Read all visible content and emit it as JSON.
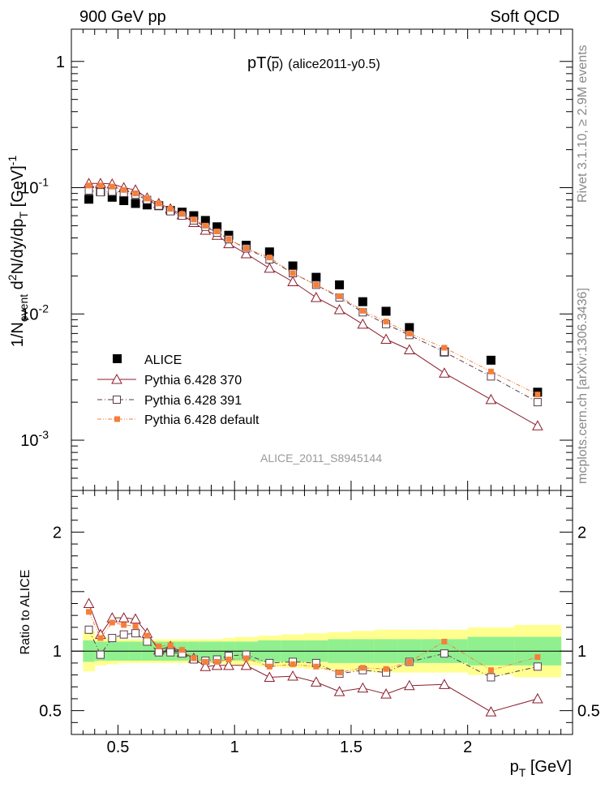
{
  "header": {
    "left_label": "900 GeV pp",
    "right_label": "Soft QCD",
    "side_top": "Rivet 3.1.10, ≥ 2.9M events",
    "side_bottom": "mcplots.cern.ch [arXiv:1306.3436]"
  },
  "colors": {
    "alice": "#000000",
    "py370": "#8a1c2c",
    "py391": "#5a3a4a",
    "pydef": "#f57f3a",
    "band_inner": "#90f090",
    "band_outer": "#ffff90"
  },
  "chart_data": [
    {
      "type": "scatter",
      "panel": "main",
      "title": "pT(p̄) (alice2011-y0.5)",
      "title_main": "pT(",
      "title_pbar": "p",
      "title_close": ")",
      "title_tag": "(alice2011-y0.5)",
      "ylabel": "1/N_event d²N/dy/dp_T [GeV]⁻¹",
      "ylabel_parts": {
        "a": "1/N",
        "b": "event",
        "c": " d",
        "d": "2",
        "e": "N/dy/dp",
        "f": "T",
        "g": " [GeV]",
        "h": "-1"
      },
      "yscale": "log",
      "ylim": [
        0.0004,
        1.8
      ],
      "xlim": [
        0.3,
        2.45
      ],
      "ytick_labels": [
        {
          "value": 1,
          "mant": "1",
          "exp": ""
        },
        {
          "value": 0.1,
          "mant": "10",
          "exp": "-1"
        },
        {
          "value": 0.01,
          "mant": "10",
          "exp": "-2"
        },
        {
          "value": 0.001,
          "mant": "10",
          "exp": "-3"
        }
      ],
      "watermark": "ALICE_2011_S8945144",
      "legend_position": "lower-left",
      "x": [
        0.375,
        0.425,
        0.475,
        0.525,
        0.575,
        0.625,
        0.675,
        0.725,
        0.775,
        0.825,
        0.875,
        0.925,
        0.975,
        1.05,
        1.15,
        1.25,
        1.35,
        1.45,
        1.55,
        1.65,
        1.75,
        1.9,
        2.1,
        2.3
      ],
      "series": [
        {
          "name": "ALICE",
          "key": "alice",
          "marker": "filled-square",
          "line": false,
          "values": [
            0.081,
            0.093,
            0.084,
            0.079,
            0.075,
            0.073,
            0.072,
            0.066,
            0.064,
            0.06,
            0.055,
            0.049,
            0.042,
            0.035,
            0.031,
            0.024,
            0.0195,
            0.017,
            0.0125,
            0.0105,
            0.0078,
            0.005,
            0.0043,
            0.0024
          ]
        },
        {
          "name": "Pythia 6.428 370",
          "key": "py370",
          "marker": "open-triangle",
          "line": "solid",
          "values": [
            0.108,
            0.108,
            0.107,
            0.1,
            0.096,
            0.083,
            0.075,
            0.068,
            0.061,
            0.053,
            0.046,
            0.042,
            0.036,
            0.03,
            0.023,
            0.018,
            0.0135,
            0.0108,
            0.0083,
            0.0063,
            0.0052,
            0.0034,
            0.0021,
            0.0013
          ]
        },
        {
          "name": "Pythia 6.428 391",
          "key": "py391",
          "marker": "open-square",
          "line": "dash-dot",
          "values": [
            0.095,
            0.092,
            0.093,
            0.091,
            0.088,
            0.08,
            0.072,
            0.065,
            0.06,
            0.055,
            0.049,
            0.044,
            0.039,
            0.033,
            0.027,
            0.021,
            0.017,
            0.0135,
            0.0103,
            0.0083,
            0.0068,
            0.005,
            0.0032,
            0.002
          ]
        },
        {
          "name": "Pythia 6.428 default",
          "key": "pydef",
          "marker": "filled-small-square",
          "line": "dash-dot-dot",
          "values": [
            0.104,
            0.104,
            0.102,
            0.096,
            0.09,
            0.082,
            0.075,
            0.068,
            0.062,
            0.056,
            0.05,
            0.045,
            0.039,
            0.033,
            0.028,
            0.021,
            0.017,
            0.0138,
            0.0106,
            0.0087,
            0.007,
            0.0054,
            0.0035,
            0.0023
          ]
        }
      ]
    },
    {
      "type": "line",
      "panel": "ratio",
      "ylabel": "Ratio to ALICE",
      "xlabel": "p_T [GeV]",
      "xlabel_parts": {
        "a": "p",
        "b": "T",
        "c": " [GeV]"
      },
      "xlim": [
        0.3,
        2.45
      ],
      "ylim": [
        0.3,
        2.35
      ],
      "xtick_labels": [
        {
          "value": 0.5,
          "label": "0.5"
        },
        {
          "value": 1,
          "label": "1"
        },
        {
          "value": 1.5,
          "label": "1.5"
        },
        {
          "value": 2,
          "label": "2"
        }
      ],
      "ytick_labels": [
        {
          "value": 0.5,
          "label": "0.5"
        },
        {
          "value": 1,
          "label": "1"
        },
        {
          "value": 2,
          "label": "2"
        }
      ],
      "reference_line": 1,
      "x_edges": [
        0.35,
        0.4,
        0.45,
        0.5,
        0.55,
        0.6,
        0.65,
        0.7,
        0.75,
        0.8,
        0.85,
        0.9,
        0.95,
        1.0,
        1.1,
        1.2,
        1.3,
        1.4,
        1.5,
        1.6,
        1.7,
        1.8,
        2.0,
        2.2,
        2.4
      ],
      "band_inner": [
        0.09,
        0.08,
        0.08,
        0.08,
        0.08,
        0.08,
        0.08,
        0.08,
        0.08,
        0.08,
        0.08,
        0.08,
        0.08,
        0.08,
        0.09,
        0.09,
        0.09,
        0.1,
        0.1,
        0.1,
        0.1,
        0.1,
        0.12,
        0.12
      ],
      "band_outer": [
        0.17,
        0.12,
        0.11,
        0.1,
        0.1,
        0.1,
        0.1,
        0.1,
        0.1,
        0.1,
        0.1,
        0.1,
        0.11,
        0.12,
        0.13,
        0.14,
        0.15,
        0.16,
        0.17,
        0.18,
        0.18,
        0.18,
        0.2,
        0.22
      ],
      "x": [
        0.375,
        0.425,
        0.475,
        0.525,
        0.575,
        0.625,
        0.675,
        0.725,
        0.775,
        0.825,
        0.875,
        0.925,
        0.975,
        1.05,
        1.15,
        1.25,
        1.35,
        1.45,
        1.55,
        1.65,
        1.75,
        1.9,
        2.1,
        2.3
      ],
      "series": [
        {
          "name": "Pythia 6.428 370",
          "key": "py370",
          "marker": "open-triangle",
          "line": "solid",
          "values": [
            1.4,
            1.14,
            1.28,
            1.28,
            1.27,
            1.15,
            1.01,
            1.04,
            0.99,
            0.94,
            0.87,
            0.88,
            0.88,
            0.88,
            0.78,
            0.79,
            0.74,
            0.66,
            0.69,
            0.64,
            0.71,
            0.72,
            0.49,
            0.6
          ]
        },
        {
          "name": "Pythia 6.428 391",
          "key": "py391",
          "marker": "open-square",
          "line": "dash-dot",
          "values": [
            1.18,
            0.97,
            1.11,
            1.14,
            1.15,
            1.08,
            0.99,
            0.99,
            0.98,
            0.93,
            0.92,
            0.93,
            0.96,
            0.97,
            0.9,
            0.91,
            0.9,
            0.81,
            0.84,
            0.82,
            0.91,
            0.98,
            0.78,
            0.87
          ]
        },
        {
          "name": "Pythia 6.428 default",
          "key": "pydef",
          "marker": "filled-small-square",
          "line": "dash-dot-dot",
          "values": [
            1.33,
            1.11,
            1.24,
            1.22,
            1.21,
            1.13,
            1.04,
            1.05,
            1.01,
            0.94,
            0.91,
            0.91,
            0.93,
            0.94,
            0.87,
            0.89,
            0.87,
            0.82,
            0.86,
            0.85,
            0.91,
            1.08,
            0.84,
            0.95
          ]
        }
      ]
    }
  ]
}
